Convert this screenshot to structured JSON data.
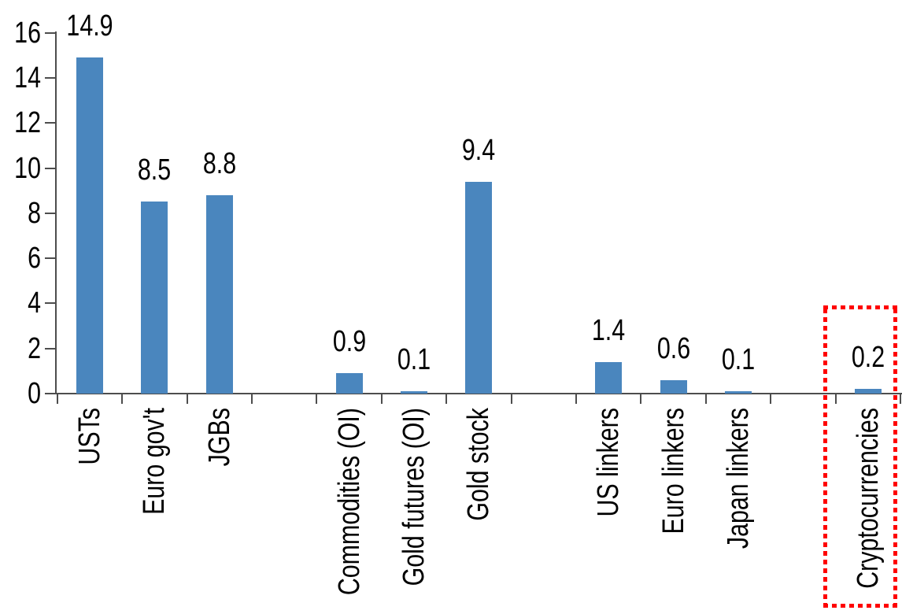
{
  "chart_data": {
    "type": "bar",
    "title": "",
    "xlabel": "",
    "ylabel": "",
    "categories": [
      "USTs",
      "Euro gov't",
      "JGBs",
      "",
      "Commodities (OI)",
      "Gold futures (OI)",
      "Gold stock",
      "",
      "US linkers",
      "Euro linkers",
      "Japan linkers",
      "",
      "Cryptocurrencies"
    ],
    "values": [
      14.9,
      8.5,
      8.8,
      null,
      0.9,
      0.1,
      9.4,
      null,
      1.4,
      0.6,
      0.1,
      null,
      0.2
    ],
    "data_labels": [
      "14.9",
      "8.5",
      "8.8",
      "",
      "0.9",
      "0.1",
      "9.4",
      "",
      "1.4",
      "0.6",
      "0.1",
      "",
      "0.2"
    ],
    "y_ticks": [
      0,
      2,
      4,
      6,
      8,
      10,
      12,
      14,
      16
    ],
    "ylim": [
      0,
      16
    ],
    "grid": false,
    "legend": false,
    "category_label_rotation": "90deg-counterclockwise",
    "bar_color": "#4A86BE",
    "axis_color": "#4D4D4D",
    "text_color": "#000000",
    "highlight": {
      "category": "Cryptocurrencies",
      "style": "dotted-box",
      "color": "#FF0000"
    }
  }
}
